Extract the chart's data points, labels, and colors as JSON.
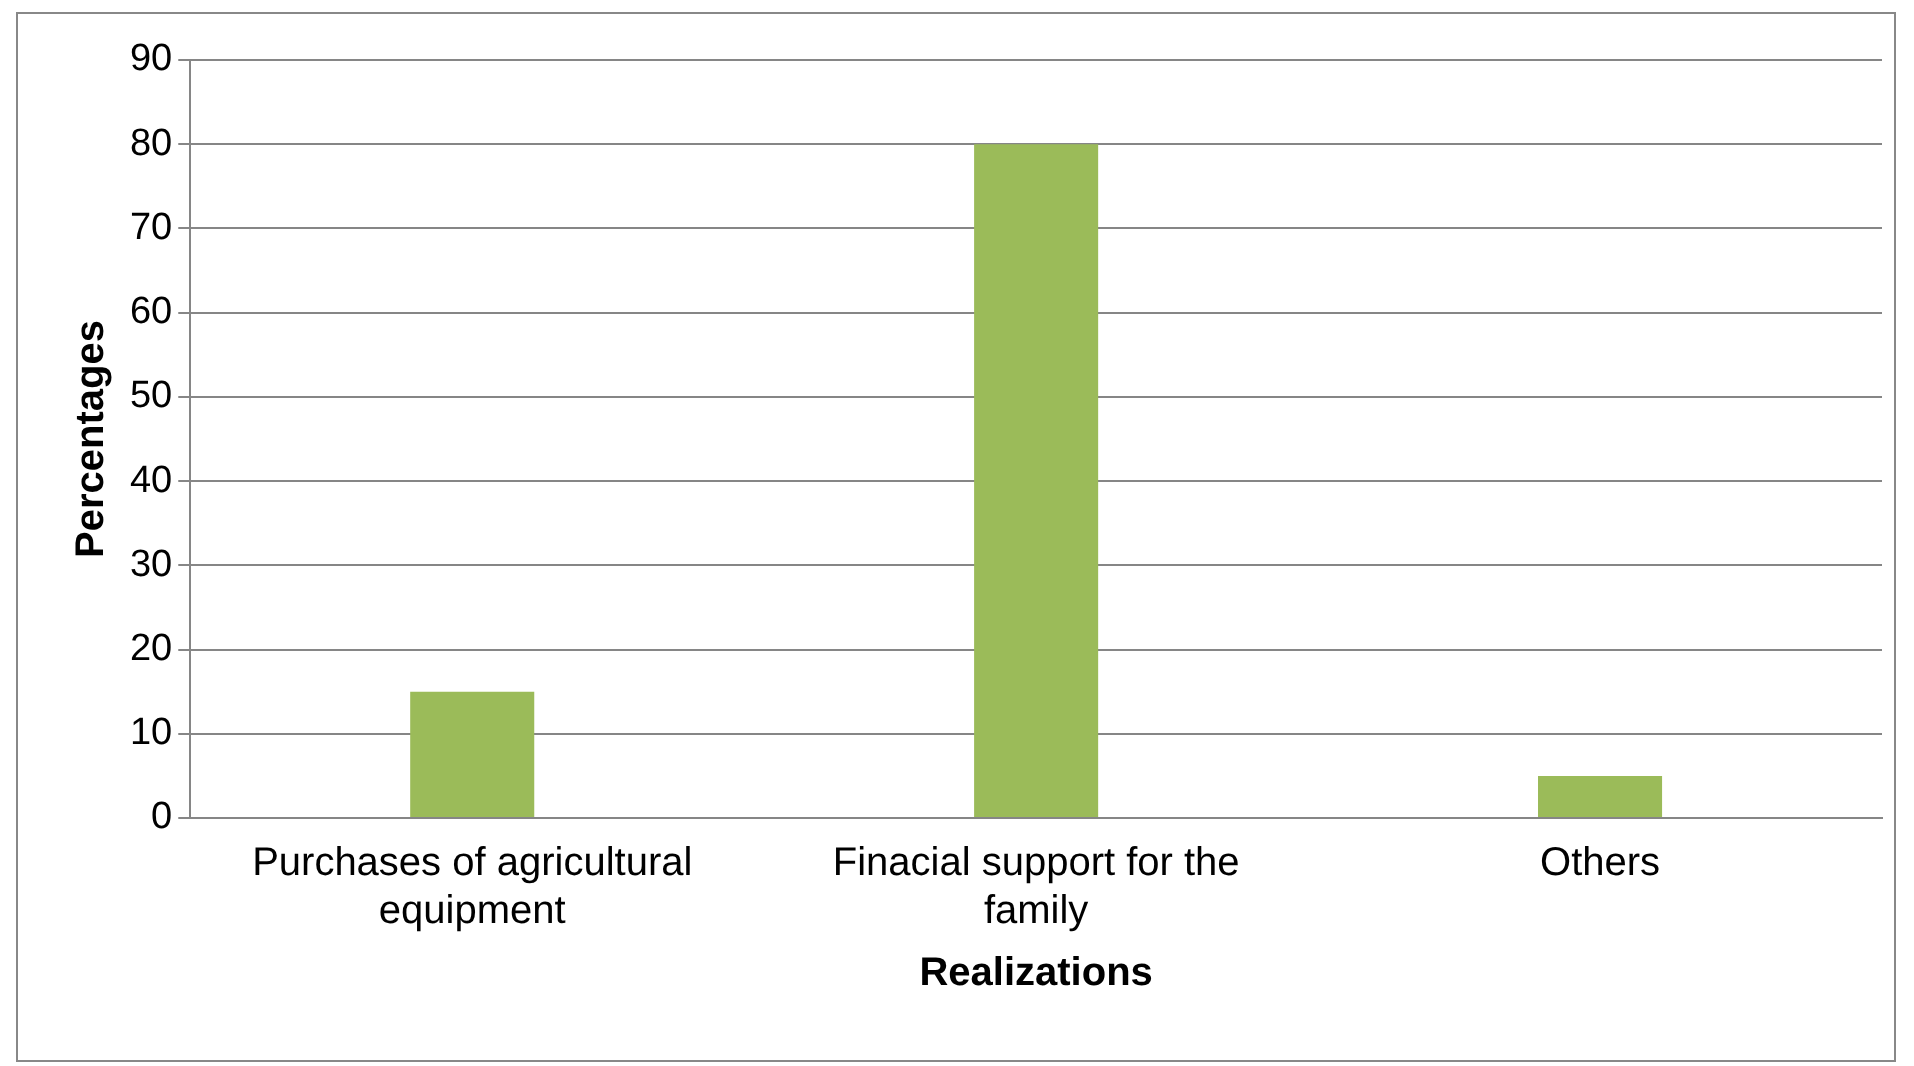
{
  "chart_data": {
    "type": "bar",
    "xlabel": "Realizations",
    "ylabel": "Percentages",
    "categories": [
      "Purchases of agricultural equipment",
      "Finacial support for the family",
      "Others"
    ],
    "values": [
      15,
      80,
      5
    ],
    "color": "#9bbb59",
    "ylim": [
      0,
      90
    ],
    "yticks": [
      0,
      10,
      20,
      30,
      40,
      50,
      60,
      70,
      80,
      90
    ],
    "grid": "y",
    "legend": false
  }
}
